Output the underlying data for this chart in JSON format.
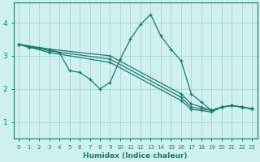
{
  "xlabel": "Humidex (Indice chaleur)",
  "bg_color": "#cff0f0",
  "grid_color": "#b0d8d8",
  "line_color": "#1a7a6e",
  "xlim": [
    -0.5,
    23.5
  ],
  "ylim": [
    0.5,
    4.6
  ],
  "yticks": [
    1,
    2,
    3,
    4
  ],
  "xticks": [
    0,
    1,
    2,
    3,
    4,
    5,
    6,
    7,
    8,
    9,
    10,
    11,
    12,
    13,
    14,
    15,
    16,
    17,
    18,
    19,
    20,
    21,
    22,
    23
  ],
  "lines": [
    {
      "x": [
        0,
        1,
        2,
        3,
        4,
        5,
        6,
        7,
        8,
        9,
        10,
        11,
        12,
        13,
        14,
        15,
        16,
        17,
        18,
        19,
        20,
        21,
        22,
        23
      ],
      "y": [
        3.35,
        3.25,
        3.25,
        3.2,
        3.1,
        2.55,
        2.5,
        2.3,
        2.0,
        2.2,
        2.9,
        3.5,
        3.95,
        4.25,
        3.6,
        3.2,
        2.85,
        1.85,
        1.6,
        1.35,
        1.45,
        1.5,
        1.45,
        1.4
      ]
    },
    {
      "x": [
        0,
        3,
        9,
        16,
        17,
        18,
        19,
        20,
        21,
        22,
        23
      ],
      "y": [
        3.35,
        3.2,
        3.0,
        1.85,
        1.55,
        1.45,
        1.35,
        1.45,
        1.5,
        1.45,
        1.4
      ]
    },
    {
      "x": [
        0,
        3,
        9,
        16,
        17,
        18,
        19,
        20,
        21,
        22,
        23
      ],
      "y": [
        3.35,
        3.15,
        2.9,
        1.75,
        1.45,
        1.4,
        1.35,
        1.45,
        1.5,
        1.45,
        1.4
      ]
    },
    {
      "x": [
        0,
        3,
        9,
        16,
        17,
        18,
        19,
        20,
        21,
        22,
        23
      ],
      "y": [
        3.35,
        3.1,
        2.8,
        1.65,
        1.38,
        1.35,
        1.3,
        1.45,
        1.5,
        1.45,
        1.4
      ]
    }
  ]
}
